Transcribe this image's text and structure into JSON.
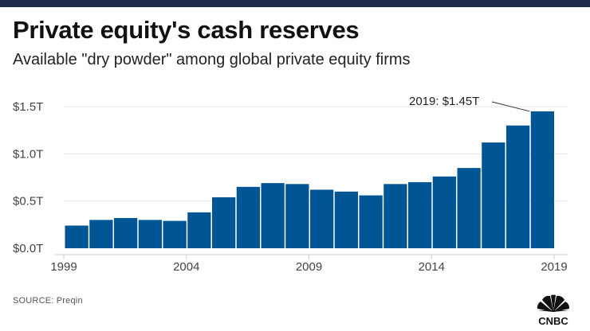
{
  "header": {
    "title": "Private equity's cash reserves",
    "subtitle": "Available \"dry powder\" among global private equity firms"
  },
  "footer": {
    "source": "SOURCE: Preqin",
    "logo_text": "CNBC"
  },
  "colors": {
    "bar": "#005594",
    "gridline": "#e6e6e6",
    "axis": "#cccccc",
    "top_bar": "#1c2b4a"
  },
  "chart_data": {
    "type": "bar",
    "title": "Private equity's cash reserves",
    "subtitle": "Available \"dry powder\" among global private equity firms",
    "x": [
      2000,
      2001,
      2002,
      2003,
      2004,
      2005,
      2006,
      2007,
      2008,
      2009,
      2010,
      2011,
      2012,
      2013,
      2014,
      2015,
      2016,
      2017,
      2018,
      2019
    ],
    "values": [
      0.24,
      0.3,
      0.32,
      0.3,
      0.29,
      0.38,
      0.54,
      0.65,
      0.69,
      0.68,
      0.62,
      0.6,
      0.56,
      0.68,
      0.7,
      0.76,
      0.85,
      1.12,
      1.3,
      1.45
    ],
    "unit": "trillions of US dollars",
    "ylim": [
      0,
      1.5
    ],
    "xlim": [
      1999,
      2019
    ],
    "yticks": [
      {
        "value": 0.0,
        "label": "$0.0T"
      },
      {
        "value": 0.5,
        "label": "$0.5T"
      },
      {
        "value": 1.0,
        "label": "$1.0T"
      },
      {
        "value": 1.5,
        "label": "$1.5T"
      }
    ],
    "xticks": [
      {
        "value": 1999,
        "label": "1999"
      },
      {
        "value": 2004,
        "label": "2004"
      },
      {
        "value": 2009,
        "label": "2009"
      },
      {
        "value": 2014,
        "label": "2014"
      },
      {
        "value": 2019,
        "label": "2019"
      }
    ],
    "grid": true,
    "legend": "none",
    "annotation": {
      "year": 2019,
      "text": "2019: $1.45T"
    }
  }
}
